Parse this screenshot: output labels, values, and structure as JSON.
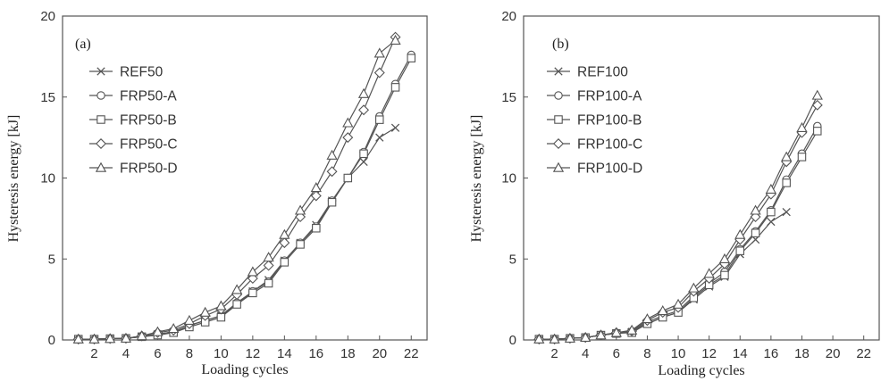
{
  "chart_data": [
    {
      "type": "line",
      "panel_label": "(a)",
      "xlabel": "Loading cycles",
      "ylabel": "Hysteresis energy [kJ]",
      "xlim": [
        0,
        23
      ],
      "ylim": [
        0,
        20
      ],
      "xticks": [
        2,
        4,
        6,
        8,
        10,
        12,
        14,
        16,
        18,
        20,
        22
      ],
      "yticks": [
        0,
        5,
        10,
        15,
        20
      ],
      "grid": false,
      "legend_position": "top-left",
      "series": [
        {
          "name": "REF50",
          "marker": "x",
          "x": [
            1,
            2,
            3,
            4,
            5,
            6,
            7,
            8,
            9,
            10,
            11,
            12,
            13,
            14,
            15,
            16,
            17,
            18,
            19,
            20,
            21
          ],
          "y": [
            0.05,
            0.05,
            0.08,
            0.1,
            0.2,
            0.35,
            0.5,
            0.9,
            1.2,
            1.5,
            2.2,
            3.0,
            3.7,
            4.9,
            6.0,
            7.1,
            8.6,
            10.0,
            11.0,
            12.5,
            13.1
          ]
        },
        {
          "name": "FRP50-A",
          "marker": "circle",
          "x": [
            1,
            2,
            3,
            4,
            5,
            6,
            7,
            8,
            9,
            10,
            11,
            12,
            13,
            14,
            15,
            16,
            17,
            18,
            19,
            20,
            21,
            22
          ],
          "y": [
            0.05,
            0.05,
            0.08,
            0.1,
            0.2,
            0.35,
            0.5,
            0.9,
            1.2,
            1.5,
            2.3,
            3.0,
            3.6,
            4.9,
            6.0,
            7.0,
            8.6,
            10.0,
            11.6,
            13.8,
            15.8,
            17.6
          ]
        },
        {
          "name": "FRP50-B",
          "marker": "square",
          "x": [
            1,
            2,
            3,
            4,
            5,
            6,
            7,
            8,
            9,
            10,
            11,
            12,
            13,
            14,
            15,
            16,
            17,
            18,
            19,
            20,
            21,
            22
          ],
          "y": [
            0.05,
            0.05,
            0.08,
            0.1,
            0.2,
            0.3,
            0.45,
            0.8,
            1.1,
            1.4,
            2.2,
            2.9,
            3.5,
            4.8,
            5.9,
            6.9,
            8.5,
            10.0,
            11.5,
            13.6,
            15.6,
            17.4
          ]
        },
        {
          "name": "FRP50-C",
          "marker": "diamond",
          "x": [
            1,
            2,
            3,
            4,
            5,
            6,
            7,
            8,
            9,
            10,
            11,
            12,
            13,
            14,
            15,
            16,
            17,
            18,
            19,
            20,
            21
          ],
          "y": [
            0.05,
            0.05,
            0.08,
            0.1,
            0.25,
            0.45,
            0.6,
            1.0,
            1.5,
            1.9,
            2.8,
            3.8,
            4.6,
            6.0,
            7.6,
            8.9,
            10.4,
            12.5,
            14.2,
            16.5,
            18.7
          ]
        },
        {
          "name": "FRP50-D",
          "marker": "triangle",
          "x": [
            1,
            2,
            3,
            4,
            5,
            6,
            7,
            8,
            9,
            10,
            11,
            12,
            13,
            14,
            15,
            16,
            17,
            18,
            19,
            20,
            21
          ],
          "y": [
            0.05,
            0.05,
            0.08,
            0.1,
            0.25,
            0.5,
            0.7,
            1.2,
            1.7,
            2.1,
            3.1,
            4.2,
            5.1,
            6.5,
            8.0,
            9.4,
            11.4,
            13.4,
            15.2,
            17.7,
            18.5
          ]
        }
      ]
    },
    {
      "type": "line",
      "panel_label": "(b)",
      "xlabel": "Loading cycles",
      "ylabel": "Hysteresis energy [kJ]",
      "xlim": [
        0,
        23
      ],
      "ylim": [
        0,
        20
      ],
      "xticks": [
        2,
        4,
        6,
        8,
        10,
        12,
        14,
        16,
        18,
        20,
        22
      ],
      "yticks": [
        0,
        5,
        10,
        15,
        20
      ],
      "grid": false,
      "legend_position": "top-left",
      "series": [
        {
          "name": "REF100",
          "marker": "x",
          "x": [
            1,
            2,
            3,
            4,
            5,
            6,
            7,
            8,
            9,
            10,
            11,
            12,
            13,
            14,
            15,
            16,
            17
          ],
          "y": [
            0.05,
            0.05,
            0.1,
            0.15,
            0.3,
            0.4,
            0.5,
            1.0,
            1.4,
            1.7,
            2.5,
            3.3,
            3.9,
            5.3,
            6.2,
            7.3,
            7.9
          ]
        },
        {
          "name": "FRP100-A",
          "marker": "circle",
          "x": [
            1,
            2,
            3,
            4,
            5,
            6,
            7,
            8,
            9,
            10,
            11,
            12,
            13,
            14,
            15,
            16,
            17,
            18,
            19
          ],
          "y": [
            0.05,
            0.05,
            0.1,
            0.15,
            0.3,
            0.4,
            0.5,
            1.1,
            1.5,
            1.8,
            2.7,
            3.5,
            4.2,
            5.6,
            6.7,
            8.0,
            9.9,
            11.5,
            13.2
          ]
        },
        {
          "name": "FRP100-B",
          "marker": "square",
          "x": [
            1,
            2,
            3,
            4,
            5,
            6,
            7,
            8,
            9,
            10,
            11,
            12,
            13,
            14,
            15,
            16,
            17,
            18,
            19
          ],
          "y": [
            0.05,
            0.05,
            0.1,
            0.15,
            0.3,
            0.4,
            0.45,
            1.0,
            1.4,
            1.7,
            2.6,
            3.4,
            4.0,
            5.5,
            6.6,
            7.9,
            9.7,
            11.3,
            12.9
          ]
        },
        {
          "name": "FRP100-C",
          "marker": "diamond",
          "x": [
            1,
            2,
            3,
            4,
            5,
            6,
            7,
            8,
            9,
            10,
            11,
            12,
            13,
            14,
            15,
            16,
            17,
            18,
            19
          ],
          "y": [
            0.05,
            0.05,
            0.1,
            0.15,
            0.3,
            0.45,
            0.55,
            1.2,
            1.7,
            2.0,
            3.0,
            3.8,
            4.7,
            6.2,
            7.6,
            9.0,
            11.0,
            12.8,
            14.5
          ]
        },
        {
          "name": "FRP100-D",
          "marker": "triangle",
          "x": [
            1,
            2,
            3,
            4,
            5,
            6,
            7,
            8,
            9,
            10,
            11,
            12,
            13,
            14,
            15,
            16,
            17,
            18,
            19
          ],
          "y": [
            0.05,
            0.05,
            0.1,
            0.15,
            0.3,
            0.45,
            0.6,
            1.3,
            1.8,
            2.2,
            3.2,
            4.1,
            5.0,
            6.5,
            8.0,
            9.3,
            11.3,
            13.1,
            15.1
          ]
        }
      ]
    }
  ]
}
